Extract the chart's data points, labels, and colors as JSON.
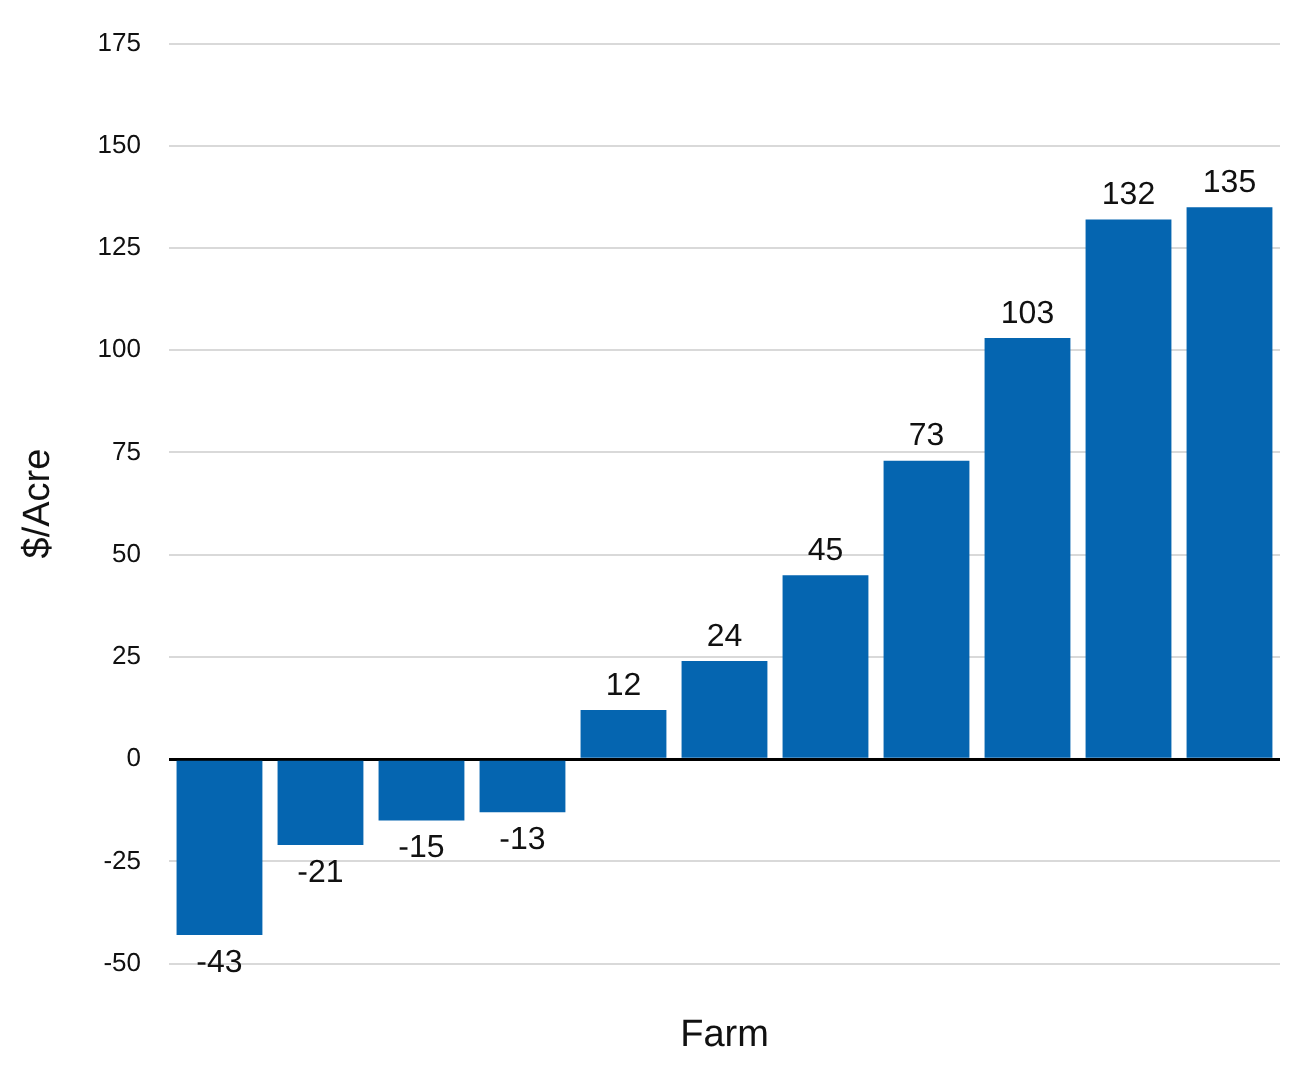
{
  "chart_data": {
    "type": "bar",
    "xlabel": "Farm",
    "ylabel": "$/Acre",
    "categories": [
      null,
      null,
      null,
      null,
      null,
      null,
      null,
      null,
      null,
      null,
      null
    ],
    "values": [
      -43,
      -21,
      -15,
      -13,
      12,
      24,
      45,
      73,
      103,
      132,
      135
    ],
    "color": "#0565b0",
    "ylim": [
      -50,
      175
    ],
    "yticks": [
      -50,
      -25,
      0,
      25,
      50,
      75,
      100,
      125,
      150,
      175
    ],
    "grid": "y",
    "data_labels": true,
    "legend": false
  }
}
